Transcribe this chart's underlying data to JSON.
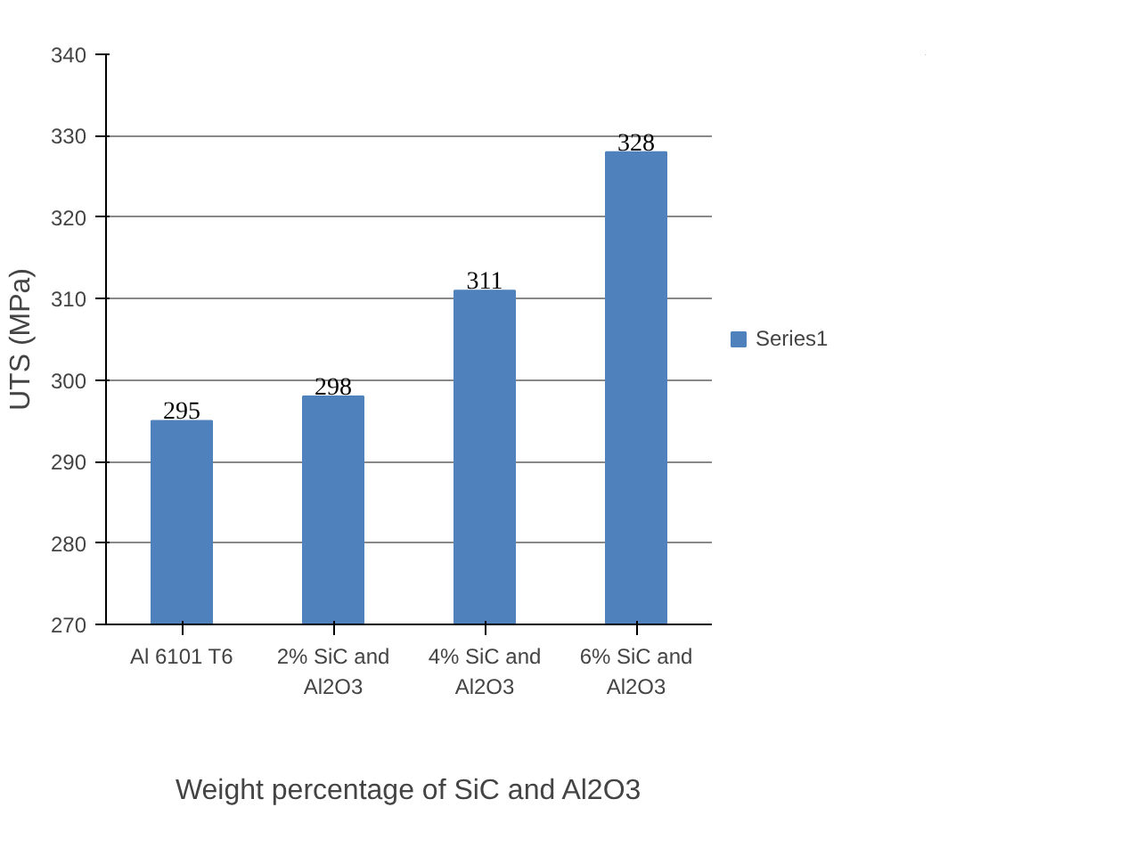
{
  "chart_data": {
    "type": "bar",
    "xlabel": "Weight percentage of SiC and Al2O3",
    "ylabel": "UTS (MPa)",
    "categories": [
      "Al 6101 T6",
      "2% SiC and\nAl2O3",
      "4% SiC and\nAl2O3",
      "6% SiC and\nAl2O3"
    ],
    "series": [
      {
        "name": "Series1",
        "color": "#4f81bd",
        "values": [
          295,
          298,
          311,
          328
        ]
      }
    ],
    "ylim": [
      270,
      340
    ],
    "yticks": [
      270,
      280,
      290,
      300,
      310,
      320,
      330,
      340
    ],
    "grid": "y",
    "legend": "right",
    "data_labels": true
  }
}
